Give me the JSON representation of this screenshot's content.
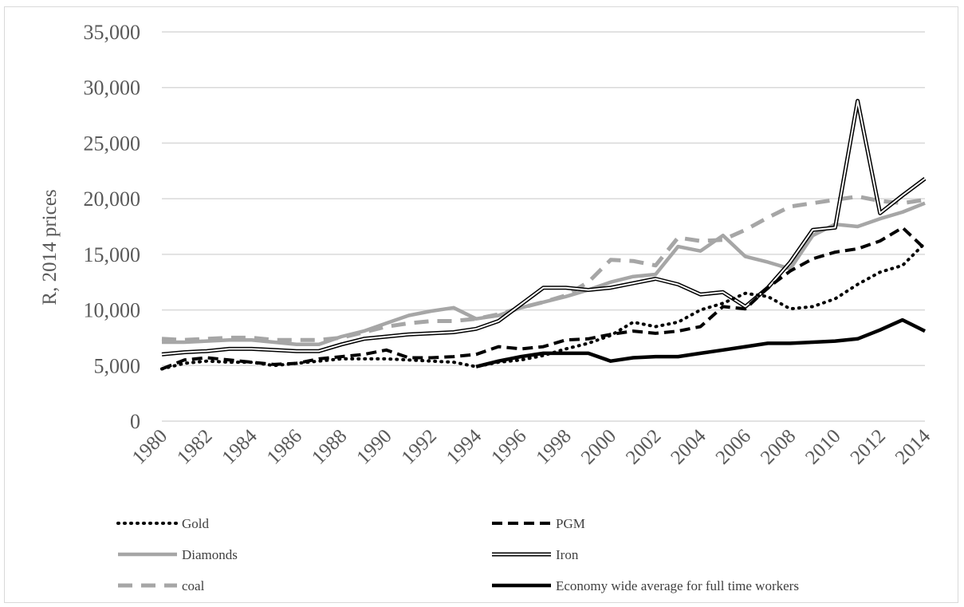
{
  "chart_data": {
    "type": "line",
    "ylabel": "R, 2014 prices",
    "xlabel": "",
    "ylim": [
      0,
      35000
    ],
    "yticks": [
      0,
      5000,
      10000,
      15000,
      20000,
      25000,
      30000,
      35000
    ],
    "ytick_labels": [
      "0",
      "5,000",
      "10,000",
      "15,000",
      "20,000",
      "25,000",
      "30,000",
      "35,000"
    ],
    "xlim": [
      1980,
      2014
    ],
    "xticks": [
      "1980",
      "1982",
      "1984",
      "1986",
      "1988",
      "1990",
      "1992",
      "1994",
      "1996",
      "1998",
      "2000",
      "2002",
      "2004",
      "2006",
      "2008",
      "2010",
      "2012",
      "2014"
    ],
    "grid": "horizontal",
    "legend_position": "bottom",
    "x": [
      1980,
      1981,
      1982,
      1983,
      1984,
      1985,
      1986,
      1987,
      1988,
      1989,
      1990,
      1991,
      1992,
      1993,
      1994,
      1995,
      1996,
      1997,
      1998,
      1999,
      2000,
      2001,
      2002,
      2003,
      2004,
      2005,
      2006,
      2007,
      2008,
      2009,
      2010,
      2011,
      2012,
      2013,
      2014
    ],
    "series": [
      {
        "name": "Gold",
        "color": "#000000",
        "style": "dotted",
        "values": [
          4700,
          5200,
          5400,
          5300,
          5300,
          5000,
          5200,
          5400,
          5600,
          5600,
          5600,
          5500,
          5400,
          5300,
          4900,
          5300,
          5500,
          5900,
          6500,
          7000,
          7700,
          8900,
          8500,
          8900,
          10000,
          10600,
          11500,
          11200,
          10100,
          10300,
          11000,
          12300,
          13400,
          14000,
          16000
        ]
      },
      {
        "name": "PGM",
        "color": "#000000",
        "style": "dashed",
        "values": [
          4700,
          5500,
          5700,
          5500,
          5300,
          5100,
          5200,
          5600,
          5800,
          6000,
          6400,
          5700,
          5700,
          5800,
          6000,
          6700,
          6500,
          6700,
          7300,
          7400,
          7800,
          8100,
          7900,
          8100,
          8500,
          10300,
          10100,
          12000,
          13500,
          14600,
          15200,
          15500,
          16200,
          17400,
          15500
        ]
      },
      {
        "name": "Diamonds",
        "color": "#a6a6a6",
        "style": "solid-thick",
        "values": [
          7100,
          7100,
          7200,
          7300,
          7300,
          7100,
          6900,
          6900,
          7600,
          8100,
          8800,
          9500,
          9900,
          10200,
          9200,
          9500,
          10200,
          10700,
          11200,
          11800,
          12500,
          13000,
          13200,
          15700,
          15300,
          16700,
          14800,
          14300,
          13700,
          16700,
          17700,
          17500,
          18200,
          18800,
          19600
        ]
      },
      {
        "name": "Iron",
        "color": "#000000",
        "style": "double",
        "values": [
          6000,
          6200,
          6300,
          6500,
          6500,
          6400,
          6300,
          6300,
          6900,
          7400,
          7600,
          7800,
          7900,
          8000,
          8300,
          9000,
          10500,
          12000,
          12000,
          11800,
          12000,
          12400,
          12800,
          12300,
          11400,
          11600,
          10300,
          12000,
          14300,
          17200,
          17400,
          28800,
          18700,
          20300,
          21800
        ]
      },
      {
        "name": "coal",
        "color": "#a6a6a6",
        "style": "dashed-thick",
        "values": [
          7400,
          7300,
          7400,
          7500,
          7500,
          7300,
          7300,
          7300,
          7500,
          8000,
          8500,
          8800,
          9000,
          9000,
          9200,
          9600,
          10200,
          10700,
          11300,
          12500,
          14500,
          14400,
          14000,
          16500,
          16200,
          16300,
          17200,
          18300,
          19300,
          19600,
          19900,
          20200,
          19800,
          19600,
          19900
        ]
      },
      {
        "name": "Economy wide average for full time workers",
        "color": "#000000",
        "style": "solid-thick",
        "start_year": 1994,
        "values": [
          null,
          null,
          null,
          null,
          null,
          null,
          null,
          null,
          null,
          null,
          null,
          null,
          null,
          null,
          4900,
          5400,
          5800,
          6100,
          6100,
          6100,
          5400,
          5700,
          5800,
          5800,
          6100,
          6400,
          6700,
          7000,
          7000,
          7100,
          7200,
          7400,
          8200,
          9100,
          8100
        ]
      }
    ]
  }
}
